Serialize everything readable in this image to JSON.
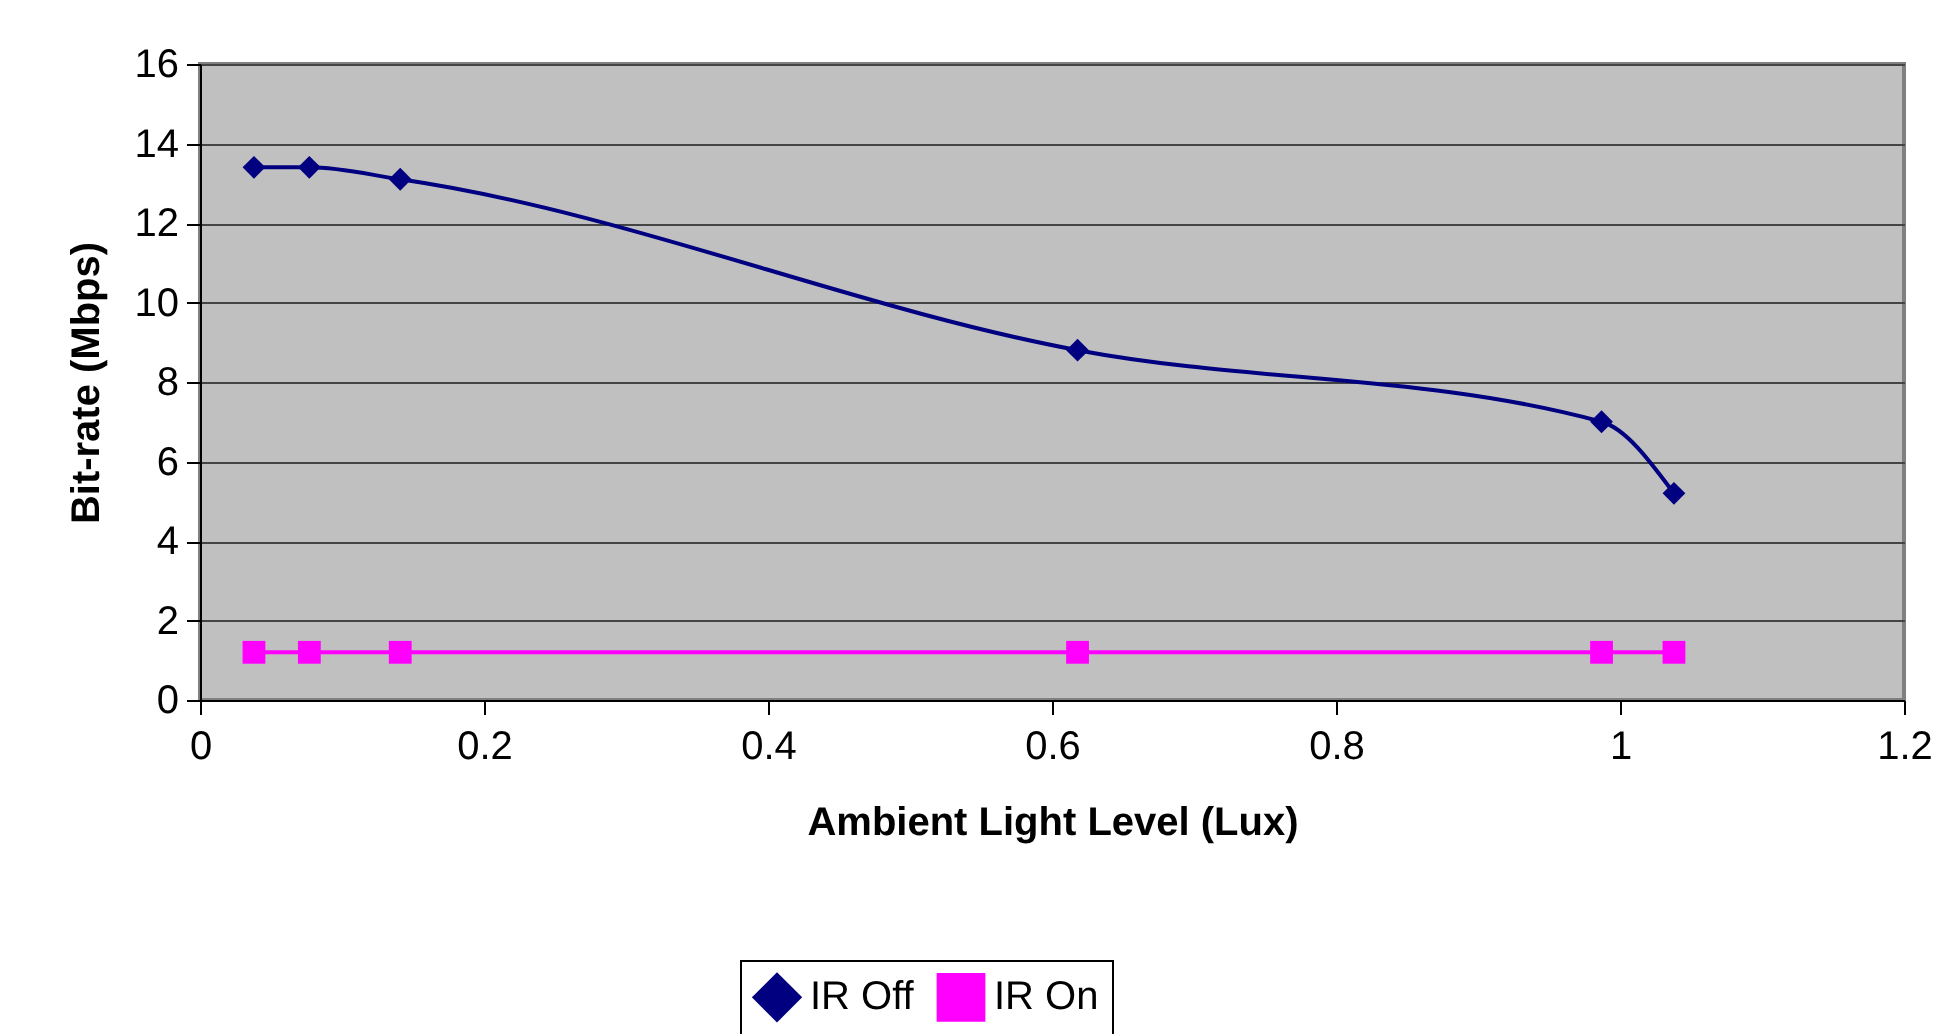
{
  "chart_data": {
    "type": "line",
    "xlabel": "Ambient Light Level (Lux)",
    "ylabel": "Bit-rate (Mbps)",
    "x": [
      0.038,
      0.077,
      0.141,
      0.618,
      0.987,
      1.038
    ],
    "series": [
      {
        "name": "IR Off",
        "color": "#000080",
        "marker": "diamond",
        "values": [
          13.4,
          13.4,
          13.1,
          8.8,
          7.0,
          5.2
        ]
      },
      {
        "name": "IR On",
        "color": "#ff00ff",
        "marker": "square",
        "values": [
          1.2,
          1.2,
          1.2,
          1.2,
          1.2,
          1.2
        ]
      }
    ],
    "xlim": [
      0,
      1.2
    ],
    "xticks": [
      0,
      0.2,
      0.4,
      0.6,
      0.8,
      1,
      1.2
    ],
    "ylim": [
      0,
      16
    ],
    "yticks": [
      0,
      2,
      4,
      6,
      8,
      10,
      12,
      14,
      16
    ],
    "grid": "y",
    "legend": "bottom",
    "line_style": "solid"
  }
}
